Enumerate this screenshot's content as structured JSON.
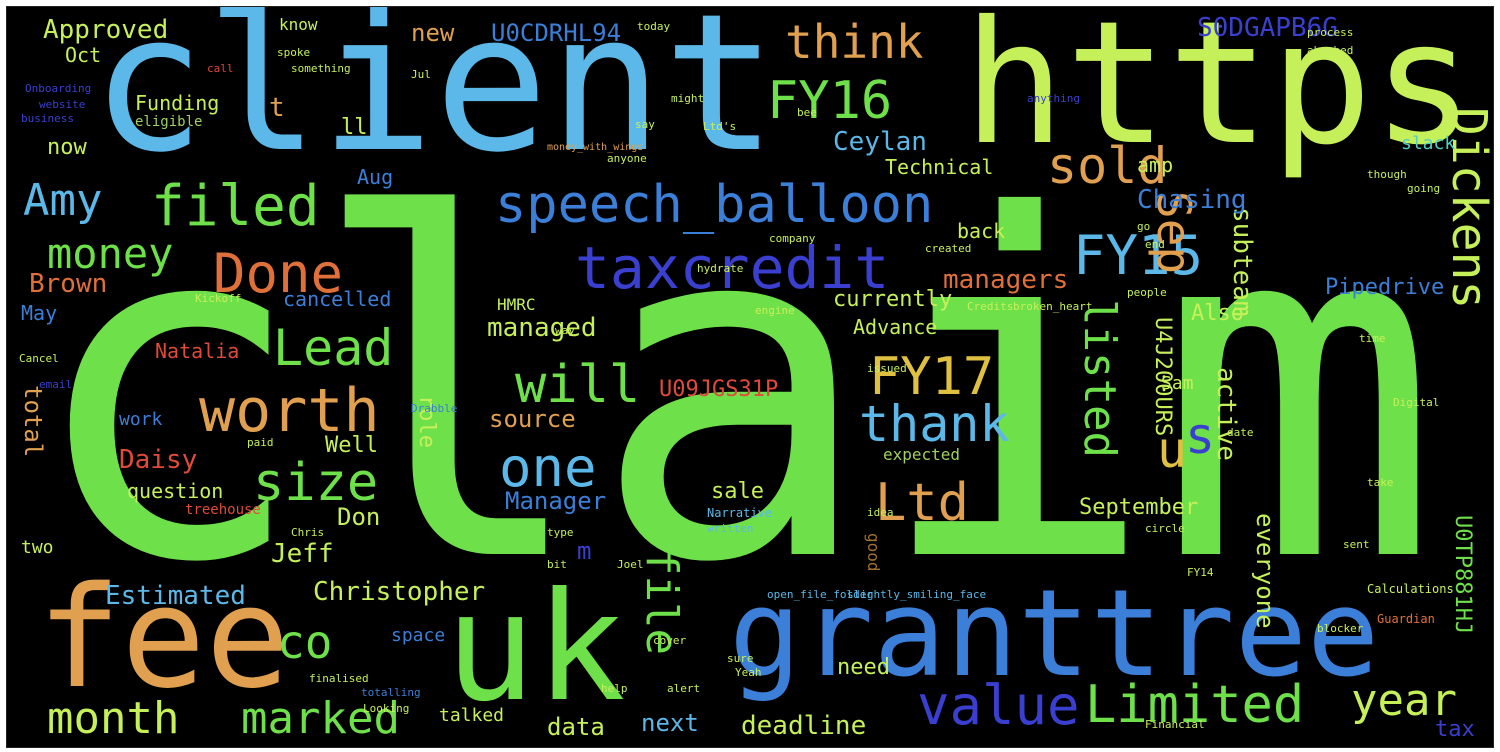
{
  "palette": {
    "green": "#6ee04a",
    "lime": "#c6f05a",
    "sky": "#5bb8e8",
    "blue": "#3b7fd8",
    "indigo": "#3a3fd0",
    "orange": "#e0a050",
    "red": "#e04a3a",
    "teal": "#4ed0c8"
  },
  "words": {
    "claim": "claim",
    "client": "client",
    "https": "https",
    "fee": "fee",
    "uk": "uk",
    "granttree": "granttree",
    "speech_balloon": "speech_balloon",
    "taxcredit": "taxcredit",
    "fy16": "FY16",
    "fy15": "FY15",
    "fy17": "FY17",
    "dickens": "Dickens",
    "sold": "sold",
    "sep": "Sep",
    "amy": "Amy",
    "filed": "filed",
    "money": "money",
    "done": "Done",
    "lead": "Lead",
    "will": "will",
    "worth": "worth",
    "size": "size",
    "one": "one",
    "thank": "thank",
    "ltd": "Ltd",
    "s": "s",
    "u": "u",
    "listed": "listed",
    "month": "month",
    "marked": "marked",
    "value": "value",
    "limited": "Limited",
    "year": "year",
    "file": "file",
    "co": "co",
    "christopher": "Christopher",
    "estimated": "Estimated",
    "think": "think",
    "approved": "Approved",
    "new": "new",
    "u0cdrhl94": "U0CDRHL94",
    "s0dgapb6g": "S0DGAPB6G",
    "funding": "Funding",
    "now": "now",
    "oct": "Oct",
    "t": "t",
    "ll": "ll",
    "ceylan": "Ceylan",
    "technical": "Technical",
    "aug": "Aug",
    "amp": "amp",
    "chasing": "Chasing",
    "subteam": "subteam",
    "managers": "managers",
    "pipedrive": "Pipedrive",
    "brown": "Brown",
    "cancelled": "cancelled",
    "may": "May",
    "managed": "managed",
    "currently": "currently",
    "advance": "Advance",
    "also": "Also",
    "natalia": "Natalia",
    "total": "total",
    "work": "work",
    "daisy": "Daisy",
    "well": "Well",
    "source": "source",
    "u09jgs31p": "U09JGS31P",
    "role": "role",
    "sam": "Sam",
    "active": "active",
    "question": "question",
    "manager": "Manager",
    "sale": "sale",
    "don": "Don",
    "jeff": "Jeff",
    "september": "September",
    "everyone": "everyone",
    "expected": "expected",
    "good": "good",
    "space": "space",
    "need": "need",
    "data": "data",
    "next": "next",
    "deadline": "deadline",
    "tax": "tax",
    "talked": "talked",
    "two": "two",
    "hmrc": "HMRC",
    "back": "back",
    "eligible": "eligible",
    "know": "know",
    "u0tp881hj": "U0TP881HJ",
    "u4j200urs": "U4J200URS",
    "slack": "slack",
    "treehouse": "treehouse",
    "m": "m",
    "narrative": "Narrative",
    "calculations": "Calculations",
    "guardian": "Guardian",
    "today": "today",
    "say": "say",
    "go": "go",
    "email": "email",
    "cancel": "Cancel",
    "people": "people",
    "company": "company",
    "onboarding": "Onboarding",
    "website": "website",
    "business": "business",
    "looking": "Looking",
    "totalling": "totalling",
    "finalised": "finalised",
    "credits": "Credits",
    "open_file_folder": "open_file_folder",
    "slightly_smiling_face": "slightly_smiling_face",
    "broken_heart": "broken_heart",
    "money_with_wings": "money_with_wings",
    "financial": "Financial",
    "help": "help",
    "alert": "alert",
    "circle": "circle",
    "digital": "Digital",
    "created": "created",
    "going": "going",
    "though": "though",
    "time": "time",
    "take": "take",
    "might": "might",
    "anyone": "anyone",
    "engine": "engine",
    "paid": "paid",
    "bit": "bit",
    "chris": "Chris",
    "type": "type",
    "sure": "sure",
    "fy14": "FY14",
    "written": "written",
    "cover": "cover",
    "yeah": "Yeah",
    "date": "date",
    "hydrate": "hydrate",
    "joel": "Joel",
    "jul": "Jul",
    "idea": "idea",
    "sent": "sent",
    "ltds": "Ltd's",
    "issued": "issued",
    "bee": "bee",
    "spoke": "spoke",
    "something": "something",
    "call": "call",
    "anything": "anything",
    "abashed": "abashed",
    "process": "process",
    "way": "way",
    "end": "end",
    "kickoff": "Kickoff",
    "drabble": "Drabble",
    "blocker": "blocker"
  }
}
